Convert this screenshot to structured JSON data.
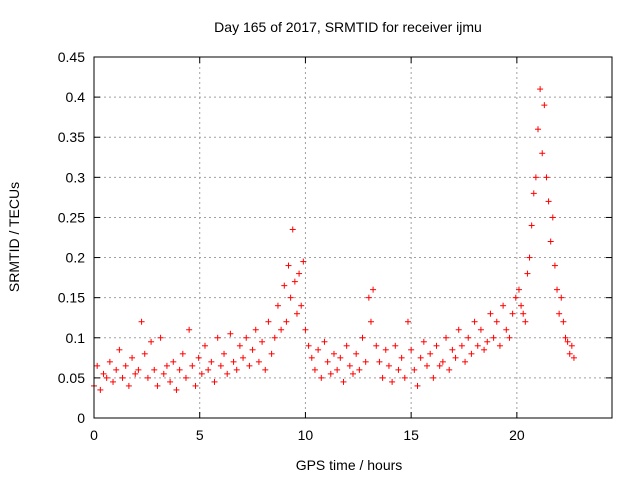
{
  "chart_data": {
    "type": "scatter",
    "title": "Day 165 of 2017, SRMTID for receiver ijmu",
    "xlabel": "GPS time / hours",
    "ylabel": "SRMTID / TECUs",
    "xlim": [
      0,
      24.5
    ],
    "ylim": [
      0,
      0.45
    ],
    "x_ticks": [
      0,
      5,
      10,
      15,
      20
    ],
    "x_tick_labels": [
      "0",
      "5",
      "10",
      "15",
      "20"
    ],
    "y_ticks": [
      0,
      0.05,
      0.1,
      0.15,
      0.2,
      0.25,
      0.3,
      0.35,
      0.4,
      0.45
    ],
    "y_tick_labels": [
      "0",
      "0.05",
      "0.1",
      "0.15",
      "0.2",
      "0.25",
      "0.3",
      "0.35",
      "0.4",
      "0.45"
    ],
    "grid": true,
    "marker": "+",
    "series": [
      {
        "name": "SRMTID",
        "color": "#ff0000",
        "x": [
          0.0,
          0.15,
          0.3,
          0.45,
          0.6,
          0.75,
          0.9,
          1.05,
          1.2,
          1.35,
          1.5,
          1.65,
          1.8,
          1.95,
          2.1,
          2.25,
          2.4,
          2.55,
          2.7,
          2.85,
          3.0,
          3.15,
          3.3,
          3.45,
          3.6,
          3.75,
          3.9,
          4.05,
          4.2,
          4.35,
          4.5,
          4.65,
          4.8,
          4.95,
          5.1,
          5.25,
          5.4,
          5.55,
          5.7,
          5.85,
          6.0,
          6.15,
          6.3,
          6.45,
          6.6,
          6.75,
          6.9,
          7.05,
          7.2,
          7.35,
          7.5,
          7.65,
          7.8,
          7.95,
          8.1,
          8.25,
          8.4,
          8.55,
          8.7,
          8.85,
          9.0,
          9.1,
          9.2,
          9.3,
          9.4,
          9.5,
          9.6,
          9.7,
          9.8,
          9.9,
          10.0,
          10.15,
          10.3,
          10.45,
          10.6,
          10.75,
          10.9,
          11.05,
          11.2,
          11.35,
          11.5,
          11.65,
          11.8,
          11.95,
          12.1,
          12.25,
          12.4,
          12.55,
          12.7,
          12.85,
          13.0,
          13.1,
          13.2,
          13.35,
          13.5,
          13.65,
          13.8,
          13.95,
          14.1,
          14.25,
          14.4,
          14.55,
          14.7,
          14.85,
          15.0,
          15.15,
          15.3,
          15.45,
          15.6,
          15.75,
          15.9,
          16.05,
          16.2,
          16.35,
          16.5,
          16.65,
          16.8,
          16.95,
          17.1,
          17.25,
          17.4,
          17.55,
          17.7,
          17.85,
          18.0,
          18.15,
          18.3,
          18.45,
          18.6,
          18.75,
          18.9,
          19.05,
          19.2,
          19.35,
          19.5,
          19.65,
          19.8,
          19.95,
          20.1,
          20.2,
          20.3,
          20.4,
          20.5,
          20.6,
          20.7,
          20.8,
          20.9,
          21.0,
          21.1,
          21.2,
          21.3,
          21.4,
          21.5,
          21.6,
          21.7,
          21.8,
          21.9,
          22.0,
          22.1,
          22.2,
          22.3,
          22.4,
          22.5,
          22.6,
          22.7
        ],
        "y": [
          0.04,
          0.065,
          0.035,
          0.055,
          0.05,
          0.07,
          0.045,
          0.06,
          0.085,
          0.05,
          0.065,
          0.04,
          0.075,
          0.055,
          0.06,
          0.12,
          0.08,
          0.05,
          0.095,
          0.06,
          0.04,
          0.1,
          0.055,
          0.065,
          0.045,
          0.07,
          0.035,
          0.06,
          0.08,
          0.05,
          0.11,
          0.065,
          0.04,
          0.075,
          0.055,
          0.09,
          0.06,
          0.07,
          0.045,
          0.1,
          0.065,
          0.08,
          0.055,
          0.105,
          0.07,
          0.06,
          0.09,
          0.075,
          0.1,
          0.065,
          0.085,
          0.11,
          0.07,
          0.095,
          0.06,
          0.12,
          0.08,
          0.1,
          0.14,
          0.11,
          0.165,
          0.12,
          0.19,
          0.15,
          0.235,
          0.17,
          0.13,
          0.18,
          0.14,
          0.195,
          0.11,
          0.09,
          0.075,
          0.06,
          0.085,
          0.05,
          0.095,
          0.07,
          0.055,
          0.08,
          0.06,
          0.075,
          0.045,
          0.09,
          0.065,
          0.055,
          0.08,
          0.06,
          0.1,
          0.07,
          0.15,
          0.12,
          0.16,
          0.09,
          0.07,
          0.05,
          0.085,
          0.065,
          0.045,
          0.09,
          0.06,
          0.075,
          0.05,
          0.12,
          0.085,
          0.06,
          0.04,
          0.075,
          0.095,
          0.065,
          0.08,
          0.05,
          0.09,
          0.065,
          0.07,
          0.1,
          0.06,
          0.085,
          0.075,
          0.11,
          0.09,
          0.07,
          0.1,
          0.08,
          0.12,
          0.09,
          0.11,
          0.085,
          0.095,
          0.13,
          0.1,
          0.12,
          0.09,
          0.14,
          0.11,
          0.1,
          0.13,
          0.15,
          0.16,
          0.14,
          0.13,
          0.12,
          0.18,
          0.2,
          0.24,
          0.28,
          0.3,
          0.36,
          0.41,
          0.33,
          0.39,
          0.3,
          0.27,
          0.22,
          0.25,
          0.19,
          0.16,
          0.13,
          0.15,
          0.12,
          0.1,
          0.095,
          0.08,
          0.09,
          0.075
        ]
      }
    ]
  }
}
